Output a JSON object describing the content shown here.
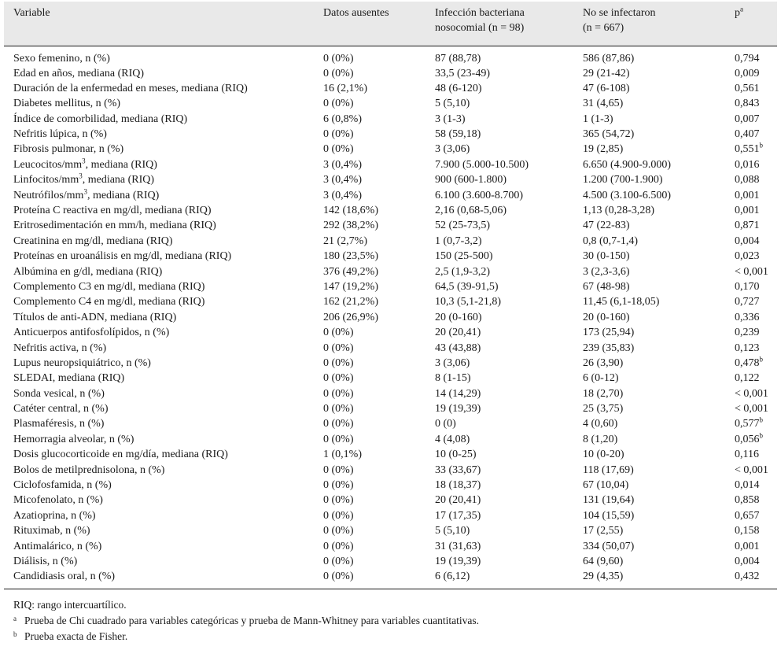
{
  "header": {
    "variable": "Variable",
    "missing": "Datos ausentes",
    "infected_line1": "Infección bacteriana",
    "infected_line2": "nosocomial (n = 98)",
    "not_infected_line1": "No se infectaron",
    "not_infected_line2": "(n = 667)",
    "p": "p",
    "p_mark": "a"
  },
  "rows": [
    {
      "variable": "Sexo femenino, n (%)",
      "missing": "0 (0%)",
      "infected": "87 (88,78)",
      "not_infected": "586 (87,86)",
      "p": "0,794"
    },
    {
      "variable": "Edad en años, mediana (RIQ)",
      "missing": "0 (0%)",
      "infected": "33,5 (23-49)",
      "not_infected": "29 (21-42)",
      "p": "0,009"
    },
    {
      "variable": "Duración de la enfermedad en meses, mediana (RIQ)",
      "missing": "16 (2,1%)",
      "infected": "48 (6-120)",
      "not_infected": "47 (6-108)",
      "p": "0,561"
    },
    {
      "variable": "Diabetes mellitus, n (%)",
      "missing": "0 (0%)",
      "infected": "5 (5,10)",
      "not_infected": "31 (4,65)",
      "p": "0,843"
    },
    {
      "variable": "Índice de comorbilidad, mediana (RIQ)",
      "missing": "6 (0,8%)",
      "infected": "3 (1-3)",
      "not_infected": "1 (1-3)",
      "p": "0,007"
    },
    {
      "variable": "Nefritis lúpica, n (%)",
      "missing": "0 (0%)",
      "infected": "58 (59,18)",
      "not_infected": "365 (54,72)",
      "p": "0,407"
    },
    {
      "variable": "Fibrosis pulmonar, n (%)",
      "missing": "0 (0%)",
      "infected": "3 (3,06)",
      "not_infected": "19 (2,85)",
      "p": "0,551",
      "p_mark": "b"
    },
    {
      "variable": "Leucocitos/mm",
      "var_sup": "3",
      "variable_tail": ", mediana (RIQ)",
      "missing": "3 (0,4%)",
      "infected": "7.900 (5.000-10.500)",
      "not_infected": "6.650 (4.900-9.000)",
      "p": "0,016"
    },
    {
      "variable": "Linfocitos/mm",
      "var_sup": "3",
      "variable_tail": ", mediana (RIQ)",
      "missing": "3 (0,4%)",
      "infected": "900 (600-1.800)",
      "not_infected": "1.200 (700-1.900)",
      "p": "0,088"
    },
    {
      "variable": "Neutrófilos/mm",
      "var_sup": "3",
      "variable_tail": ", mediana (RIQ)",
      "missing": "3 (0,4%)",
      "infected": "6.100 (3.600-8.700)",
      "not_infected": "4.500 (3.100-6.500)",
      "p": "0,001"
    },
    {
      "variable": "Proteína C reactiva en mg/dl, mediana (RIQ)",
      "missing": "142 (18,6%)",
      "infected": "2,16 (0,68-5,06)",
      "not_infected": "1,13 (0,28-3,28)",
      "p": "0,001"
    },
    {
      "variable": "Eritrosedimentación en mm/h, mediana (RIQ)",
      "missing": "292 (38,2%)",
      "infected": "52 (25-73,5)",
      "not_infected": "47 (22-83)",
      "p": "0,871"
    },
    {
      "variable": "Creatinina en mg/dl, mediana (RIQ)",
      "missing": "21 (2,7%)",
      "infected": "1 (0,7-3,2)",
      "not_infected": "0,8 (0,7-1,4)",
      "p": "0,004"
    },
    {
      "variable": "Proteínas en uroanálisis en mg/dl, mediana (RIQ)",
      "missing": "180 (23,5%)",
      "infected": "150 (25-500)",
      "not_infected": "30 (0-150)",
      "p": "0,023"
    },
    {
      "variable": "Albúmina en g/dl, mediana (RIQ)",
      "missing": "376 (49,2%)",
      "infected": "2,5 (1,9-3,2)",
      "not_infected": "3 (2,3-3,6)",
      "p": "< 0,001"
    },
    {
      "variable": "Complemento C3 en mg/dl, mediana (RIQ)",
      "missing": "147 (19,2%)",
      "infected": "64,5 (39-91,5)",
      "not_infected": "67 (48-98)",
      "p": "0,170"
    },
    {
      "variable": "Complemento C4 en mg/dl, mediana (RIQ)",
      "missing": "162 (21,2%)",
      "infected": "10,3 (5,1-21,8)",
      "not_infected": "11,45 (6,1-18,05)",
      "p": "0,727"
    },
    {
      "variable": "Títulos de anti-ADN, mediana (RIQ)",
      "missing": "206 (26,9%)",
      "infected": "20 (0-160)",
      "not_infected": "20 (0-160)",
      "p": "0,336"
    },
    {
      "variable": "Anticuerpos antifosfolípidos, n (%)",
      "missing": "0 (0%)",
      "infected": "20 (20,41)",
      "not_infected": "173 (25,94)",
      "p": "0,239"
    },
    {
      "variable": "Nefritis activa, n (%)",
      "missing": "0 (0%)",
      "infected": "43 (43,88)",
      "not_infected": "239 (35,83)",
      "p": "0,123"
    },
    {
      "variable": "Lupus neuropsiquiátrico, n (%)",
      "missing": "0 (0%)",
      "infected": "3 (3,06)",
      "not_infected": "26 (3,90)",
      "p": "0,478",
      "p_mark": "b"
    },
    {
      "variable": "SLEDAI, mediana (RIQ)",
      "missing": "0 (0%)",
      "infected": "8 (1-15)",
      "not_infected": "6 (0-12)",
      "p": "0,122"
    },
    {
      "variable": "Sonda vesical, n (%)",
      "missing": "0 (0%)",
      "infected": "14 (14,29)",
      "not_infected": "18 (2,70)",
      "p": "< 0,001"
    },
    {
      "variable": "Catéter central, n (%)",
      "missing": "0 (0%)",
      "infected": "19 (19,39)",
      "not_infected": "25 (3,75)",
      "p": "< 0,001"
    },
    {
      "variable": "Plasmaféresis, n (%)",
      "missing": "0 (0%)",
      "infected": "0 (0)",
      "not_infected": "4 (0,60)",
      "p": "0,577",
      "p_mark": "b"
    },
    {
      "variable": "Hemorragia alveolar, n (%)",
      "missing": "0 (0%)",
      "infected": "4 (4,08)",
      "not_infected": "8 (1,20)",
      "p": "0,056",
      "p_mark": "b"
    },
    {
      "variable": "Dosis glucocorticoide en mg/día, mediana (RIQ)",
      "missing": "1 (0,1%)",
      "infected": "10 (0-25)",
      "not_infected": "10 (0-20)",
      "p": "0,116"
    },
    {
      "variable": "Bolos de metilprednisolona, n (%)",
      "missing": "0 (0%)",
      "infected": "33 (33,67)",
      "not_infected": "118 (17,69)",
      "p": "< 0,001"
    },
    {
      "variable": "Ciclofosfamida, n (%)",
      "missing": "0 (0%)",
      "infected": "18 (18,37)",
      "not_infected": "67 (10,04)",
      "p": "0,014"
    },
    {
      "variable": "Micofenolato, n (%)",
      "missing": "0 (0%)",
      "infected": "20 (20,41)",
      "not_infected": "131 (19,64)",
      "p": "0,858"
    },
    {
      "variable": "Azatioprina, n (%)",
      "missing": "0 (0%)",
      "infected": "17 (17,35)",
      "not_infected": "104 (15,59)",
      "p": "0,657"
    },
    {
      "variable": "Rituximab, n (%)",
      "missing": "0 (0%)",
      "infected": "5 (5,10)",
      "not_infected": "17 (2,55)",
      "p": "0,158"
    },
    {
      "variable": "Antimalárico, n (%)",
      "missing": "0 (0%)",
      "infected": "31 (31,63)",
      "not_infected": "334 (50,07)",
      "p": "0,001"
    },
    {
      "variable": "Diálisis, n (%)",
      "missing": "0 (0%)",
      "infected": "19 (19,39)",
      "not_infected": "64 (9,60)",
      "p": "0,004"
    },
    {
      "variable": "Candidiasis oral, n (%)",
      "missing": "0 (0%)",
      "infected": "6 (6,12)",
      "not_infected": "29 (4,35)",
      "p": "0,432"
    }
  ],
  "footnotes": {
    "abbrev": "RIQ: rango intercuartílico.",
    "a_mark": "a",
    "a_text": "Prueba de Chi cuadrado para variables categóricas y prueba de Mann-Whitney para variables cuantitativas.",
    "b_mark": "b",
    "b_text": "Prueba exacta de Fisher."
  }
}
